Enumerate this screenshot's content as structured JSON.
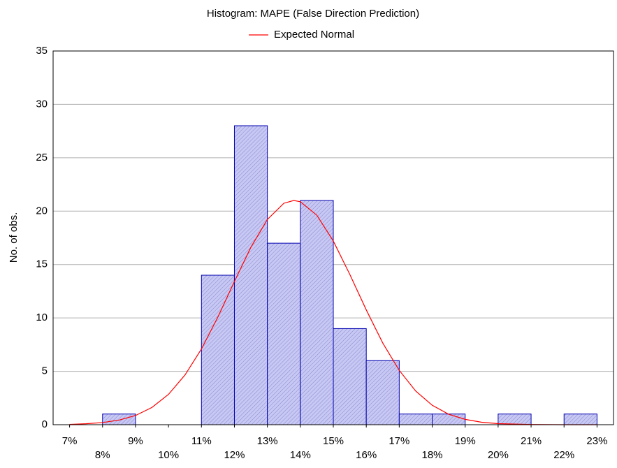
{
  "chart_data": {
    "type": "histogram",
    "title": "Histogram: MAPE (False Direction Prediction)",
    "y_label": "No. of obs.",
    "bins": [
      8,
      9,
      10,
      11,
      12,
      13,
      14,
      15,
      16,
      17,
      18,
      19,
      20,
      21,
      22,
      23
    ],
    "values": [
      1,
      0,
      0,
      14,
      28,
      17,
      21,
      9,
      6,
      1,
      1,
      0,
      1,
      0,
      1
    ],
    "color": "#c8c8f4",
    "edge_color": "#0000b0",
    "series": [
      {
        "name": "Expected Normal",
        "color": "#ff0000",
        "x": [
          7,
          7.5,
          8,
          8.5,
          9,
          9.5,
          10,
          10.5,
          11,
          11.5,
          12,
          12.5,
          13,
          13.5,
          13.8,
          14,
          14.5,
          15,
          15.5,
          16,
          16.5,
          17,
          17.5,
          18,
          18.5,
          19,
          19.5,
          20,
          21,
          22,
          23
        ],
        "values": [
          0.03,
          0.09,
          0.2,
          0.43,
          0.86,
          1.62,
          2.84,
          4.65,
          7.09,
          10.09,
          13.41,
          16.62,
          19.22,
          20.74,
          21,
          20.88,
          19.62,
          17.2,
          14.08,
          10.75,
          7.65,
          5.09,
          3.15,
          1.82,
          0.98,
          0.5,
          0.23,
          0.1,
          0.02,
          0,
          0
        ]
      }
    ],
    "xlim": [
      6.5,
      23.5
    ],
    "xticks": [
      {
        "value": 7,
        "label": "7%"
      },
      {
        "value": 8,
        "label": "8%"
      },
      {
        "value": 9,
        "label": "9%"
      },
      {
        "value": 10,
        "label": "10%"
      },
      {
        "value": 11,
        "label": "11%"
      },
      {
        "value": 12,
        "label": "12%"
      },
      {
        "value": 13,
        "label": "13%"
      },
      {
        "value": 14,
        "label": "14%"
      },
      {
        "value": 15,
        "label": "15%"
      },
      {
        "value": 16,
        "label": "16%"
      },
      {
        "value": 17,
        "label": "17%"
      },
      {
        "value": 18,
        "label": "18%"
      },
      {
        "value": 19,
        "label": "19%"
      },
      {
        "value": 20,
        "label": "20%"
      },
      {
        "value": 21,
        "label": "21%"
      },
      {
        "value": 22,
        "label": "22%"
      },
      {
        "value": 23,
        "label": "23%"
      }
    ],
    "ylim": [
      0,
      35
    ],
    "yticks": [
      0,
      5,
      10,
      15,
      20,
      25,
      30,
      35
    ],
    "grid": true
  }
}
